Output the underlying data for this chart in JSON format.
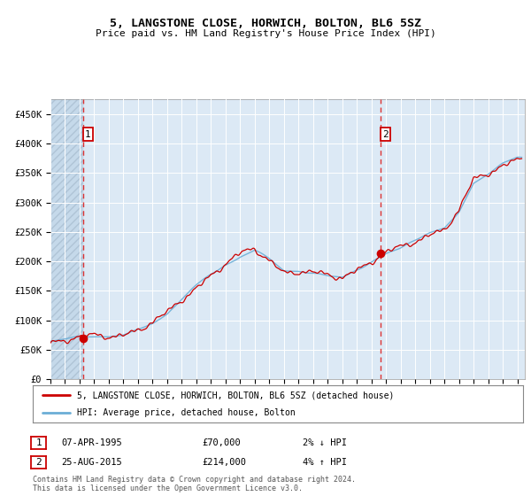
{
  "title": "5, LANGSTONE CLOSE, HORWICH, BOLTON, BL6 5SZ",
  "subtitle": "Price paid vs. HM Land Registry's House Price Index (HPI)",
  "ylim": [
    0,
    475000
  ],
  "yticks": [
    0,
    50000,
    100000,
    150000,
    200000,
    250000,
    300000,
    350000,
    400000,
    450000
  ],
  "ytick_labels": [
    "£0",
    "£50K",
    "£100K",
    "£150K",
    "£200K",
    "£250K",
    "£300K",
    "£350K",
    "£400K",
    "£450K"
  ],
  "xlim_start": 1993.0,
  "xlim_end": 2025.5,
  "background_color": "#dce9f5",
  "hatch_color": "#b8cfe0",
  "grid_color": "#ffffff",
  "sale1_x": 1995.27,
  "sale1_y": 70000,
  "sale1_label": "07-APR-1995",
  "sale1_price": "£70,000",
  "sale1_hpi": "2% ↓ HPI",
  "sale2_x": 2015.65,
  "sale2_y": 214000,
  "sale2_label": "25-AUG-2015",
  "sale2_price": "£214,000",
  "sale2_hpi": "4% ↑ HPI",
  "legend_line1": "5, LANGSTONE CLOSE, HORWICH, BOLTON, BL6 5SZ (detached house)",
  "legend_line2": "HPI: Average price, detached house, Bolton",
  "footnote1": "Contains HM Land Registry data © Crown copyright and database right 2024.",
  "footnote2": "This data is licensed under the Open Government Licence v3.0.",
  "hpi_color": "#6baed6",
  "sale_color": "#cc0000",
  "marker_color": "#cc0000",
  "box_color": "#cc0000"
}
